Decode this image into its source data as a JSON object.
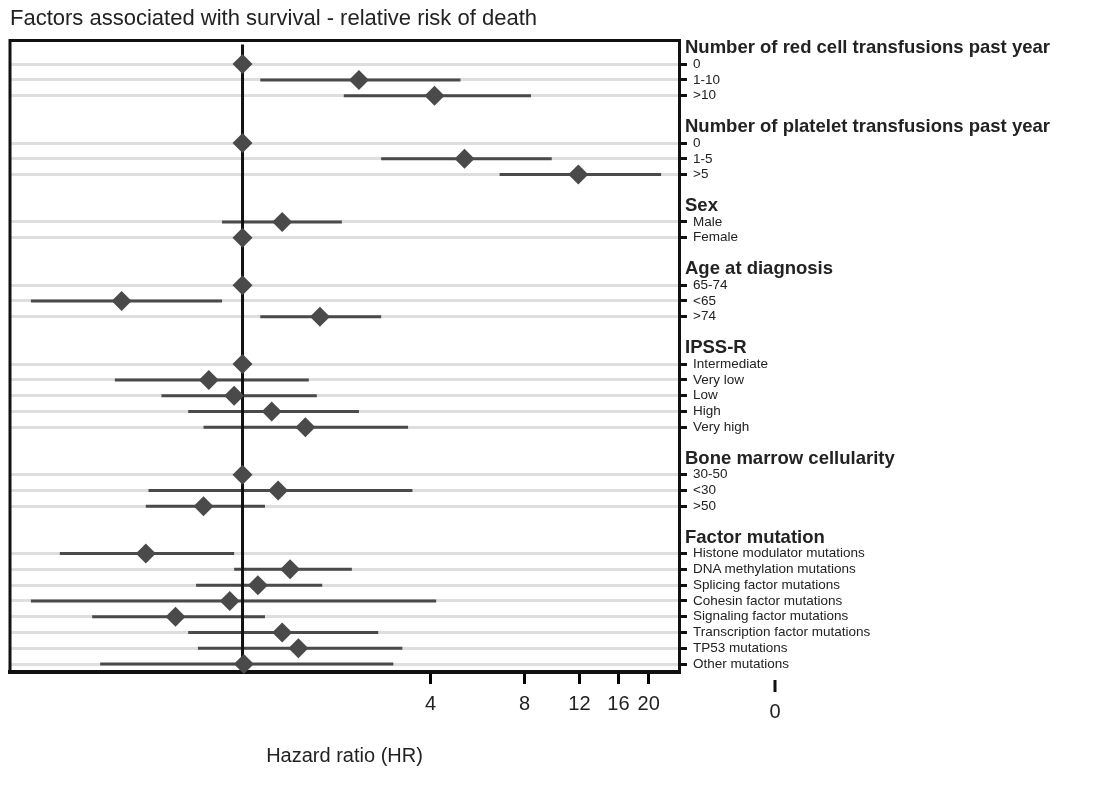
{
  "chart_data": {
    "type": "scatter",
    "orientation": "horizontal",
    "title": "Factors associated with survival - relative risk of death",
    "xlabel": "Hazard ratio (HR)",
    "categories": [
      null,
      "0",
      "1-10",
      ">10",
      null,
      null,
      "0",
      "1-5",
      ">5",
      null,
      null,
      "Male",
      "Female",
      null,
      null,
      "65-74",
      "<65",
      ">74",
      null,
      null,
      "Intermediate",
      "Very low",
      "Low",
      "High",
      "Very high",
      null,
      null,
      "30-50",
      "<30",
      ">50",
      null,
      null,
      "Histone modulator mutations",
      "DNA methylation mutations",
      "Splicing factor mutations",
      "Cohesin factor mutations",
      "Signaling factor mutations",
      "Transcription factor mutations",
      "TP53 mutations",
      "Other mutations"
    ],
    "series": [
      {
        "color": "#4a4a4a",
        "values": [
          null,
          1,
          2.36,
          4.12,
          null,
          null,
          1,
          5.14,
          11.9,
          null,
          null,
          1.34,
          1,
          null,
          null,
          1,
          0.41,
          1.77,
          null,
          null,
          1,
          0.78,
          0.94,
          1.24,
          1.59,
          null,
          null,
          1,
          1.3,
          0.75,
          null,
          null,
          0.49,
          1.42,
          1.12,
          0.91,
          0.61,
          1.34,
          1.51,
          1.01
        ],
        "errors": [
          null,
          null,
          [
            1.14,
            4.99
          ],
          [
            2.11,
            8.39
          ],
          null,
          null,
          null,
          [
            2.78,
            9.78
          ],
          [
            6.66,
            21.9
          ],
          null,
          null,
          [
            0.86,
            2.08
          ],
          null,
          null,
          null,
          null,
          [
            0.21,
            0.86
          ],
          [
            1.14,
            2.78
          ],
          null,
          null,
          null,
          [
            0.39,
            1.63
          ],
          [
            0.55,
            1.73
          ],
          [
            0.67,
            2.36
          ],
          [
            0.75,
            3.39
          ],
          null,
          null,
          null,
          [
            0.5,
            3.5
          ],
          [
            0.49,
            1.18
          ],
          null,
          null,
          [
            0.26,
            0.94
          ],
          [
            0.94,
            2.24
          ],
          [
            0.71,
            1.8
          ],
          [
            0.21,
            4.17
          ],
          [
            0.33,
            1.18
          ],
          [
            0.67,
            2.72
          ],
          [
            0.72,
            3.25
          ],
          [
            0.35,
            3.04
          ]
        ]
      }
    ],
    "log": "x",
    "xlim": [
      0.18,
      25
    ],
    "xticks": [
      4,
      8,
      12,
      16,
      20
    ],
    "marker": "diamond",
    "grid": "y",
    "ref_lines": [
      {
        "axis": "x",
        "value": 1,
        "color": "#111111"
      }
    ],
    "annotations": [
      "Number of red cell transfusions past year",
      "Number of platelet transfusions past year",
      "Sex",
      "Age at diagnosis",
      "IPSS-R",
      "Bone marrow cellularity",
      "Factor mutation",
      "0"
    ]
  }
}
